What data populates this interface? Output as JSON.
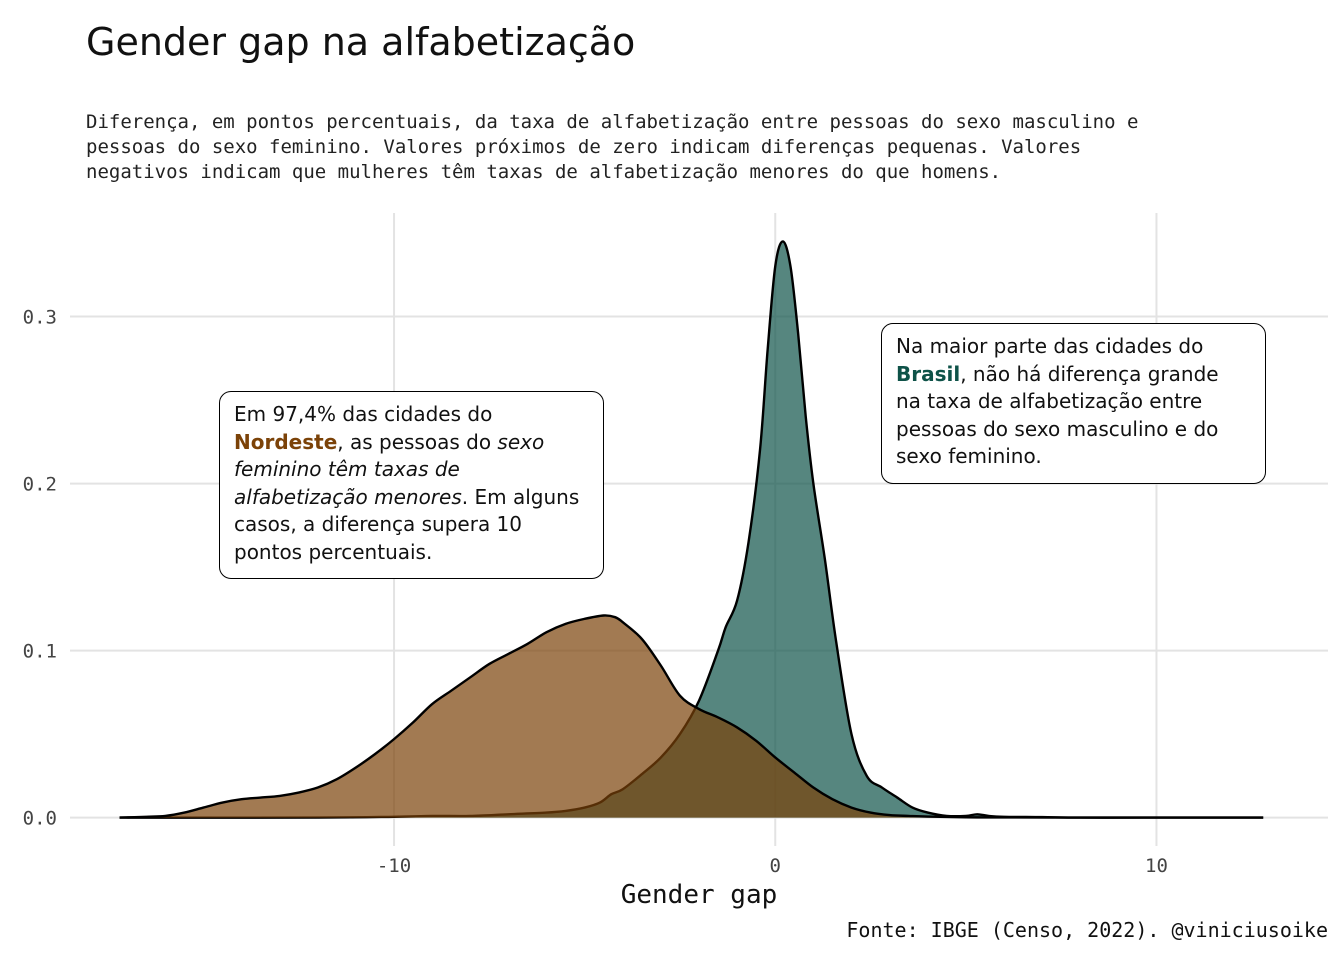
{
  "title": "Gender gap na alfabetização",
  "subtitle_lines": [
    "Diferença, em pontos percentuais, da taxa de alfabetização entre pessoas do sexo masculino e",
    "pessoas do sexo feminino. Valores próximos de zero indicam diferenças pequenas. Valores",
    "negativos indicam que mulheres têm taxas de alfabetização menores do que homens."
  ],
  "caption": "Fonte: IBGE (Censo, 2022). @viniciusoike",
  "annotations": {
    "nordeste": {
      "line1": "Em 97,4% das cidades do",
      "highlight": "Nordeste",
      "line2_rest": ", as pessoas do ",
      "italic_a": "sexo",
      "italic_b": "feminino têm taxas de",
      "italic_c": "alfabetização menores",
      "line4_rest": ". Em alguns",
      "line5": "casos, a diferença supera 10",
      "line6": "pontos percentuais.",
      "color": "#7b4208"
    },
    "brasil": {
      "line1": "Na maior parte das cidades do",
      "highlight": "Brasil",
      "line2_rest": ", não há diferença grande",
      "line3": "na taxa de alfabetização entre",
      "line4": "pessoas do sexo masculino e do",
      "line5": "sexo feminino.",
      "color": "#0e5248"
    }
  },
  "chart_data": {
    "type": "area",
    "xlabel": "Gender gap",
    "ylabel": "",
    "xlim": [
      -18.5,
      14.5
    ],
    "ylim": [
      -0.017,
      0.362
    ],
    "x_ticks": [
      -10,
      0,
      10
    ],
    "x_tick_labels": [
      "-10",
      "0",
      "10"
    ],
    "y_ticks": [
      0.0,
      0.1,
      0.2,
      0.3
    ],
    "y_tick_labels": [
      "0.0",
      "0.1",
      "0.2",
      "0.3"
    ],
    "grid": true,
    "legend": "none",
    "series": [
      {
        "color": "#0e5248",
        "x": [
          -17.2,
          -12,
          -10,
          -9,
          -8,
          -7,
          -6,
          -5.5,
          -5,
          -4.6,
          -4.3,
          -4,
          -3.5,
          -3,
          -2.5,
          -2,
          -1.5,
          -1.3,
          -1,
          -0.7,
          -0.4,
          -0.2,
          0,
          0.2,
          0.4,
          0.6,
          0.8,
          1,
          1.3,
          1.6,
          2,
          2.4,
          2.8,
          3.2,
          3.6,
          4,
          4.5,
          5,
          5.3,
          5.6,
          6,
          7,
          8,
          10,
          12.8
        ],
        "y": [
          0,
          0,
          0.0005,
          0.001,
          0.001,
          0.002,
          0.003,
          0.004,
          0.006,
          0.009,
          0.014,
          0.017,
          0.026,
          0.036,
          0.05,
          0.07,
          0.1,
          0.114,
          0.13,
          0.165,
          0.22,
          0.28,
          0.33,
          0.345,
          0.33,
          0.29,
          0.24,
          0.2,
          0.155,
          0.105,
          0.05,
          0.025,
          0.018,
          0.012,
          0.006,
          0.003,
          0.001,
          0.001,
          0.002,
          0.001,
          0.0005,
          0.0003,
          0,
          0,
          0
        ]
      },
      {
        "color": "#7b4208",
        "x": [
          -17.2,
          -16.5,
          -16,
          -15.5,
          -15,
          -14.5,
          -14,
          -13.5,
          -13,
          -12.5,
          -12,
          -11.5,
          -11,
          -10.5,
          -10,
          -9.5,
          -9,
          -8.5,
          -8,
          -7.5,
          -7,
          -6.5,
          -6,
          -5.5,
          -5,
          -4.5,
          -4.2,
          -4,
          -3.5,
          -3,
          -2.5,
          -2,
          -1.5,
          -1,
          -0.5,
          0,
          0.5,
          1,
          1.5,
          2,
          2.5,
          3,
          3.5,
          4,
          5,
          6,
          8,
          10,
          12.8
        ],
        "y": [
          0,
          0.0005,
          0.001,
          0.003,
          0.006,
          0.009,
          0.011,
          0.012,
          0.013,
          0.015,
          0.018,
          0.023,
          0.03,
          0.038,
          0.047,
          0.057,
          0.068,
          0.076,
          0.084,
          0.092,
          0.098,
          0.104,
          0.111,
          0.116,
          0.119,
          0.121,
          0.12,
          0.117,
          0.107,
          0.091,
          0.073,
          0.065,
          0.06,
          0.054,
          0.046,
          0.036,
          0.027,
          0.018,
          0.011,
          0.006,
          0.003,
          0.0015,
          0.001,
          0.0006,
          0.0002,
          0.0001,
          0,
          0,
          0
        ]
      }
    ]
  }
}
